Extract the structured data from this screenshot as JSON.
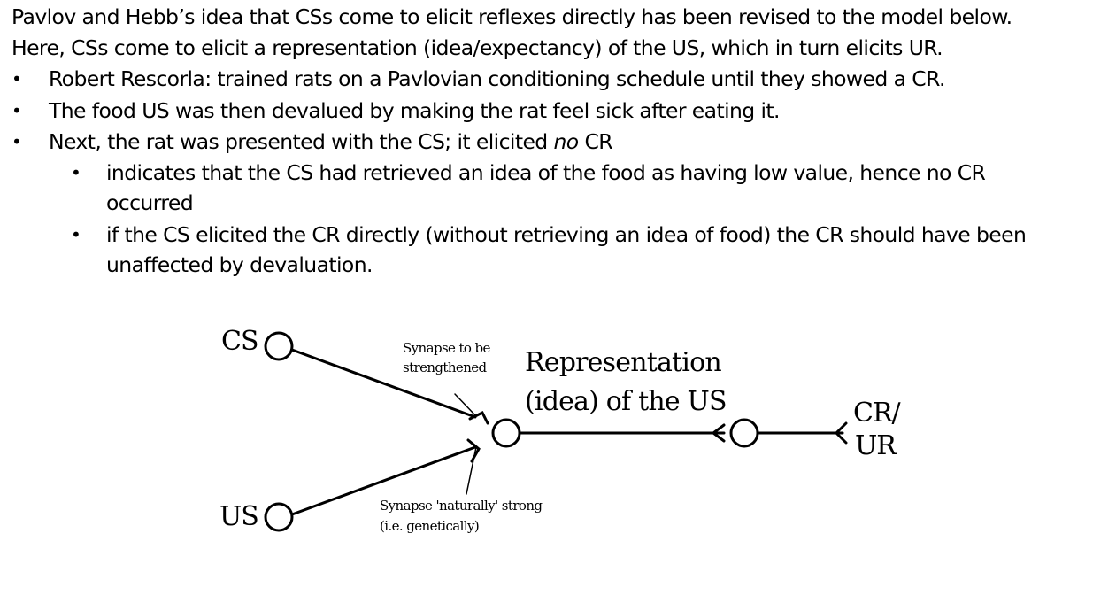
{
  "text": {
    "intro_line_1": "Pavlov and Hebb’s idea that CSs come to elicit reflexes directly has been revised to the model below.",
    "intro_line_2": "Here, CSs come to elicit a representation (idea/expectancy) of the US, which in turn elicits UR.",
    "bullets": [
      "Robert Rescorla: trained rats on a Pavlovian conditioning schedule until they showed a CR.",
      "The food US was then devalued by making the rat feel sick after eating it.",
      {
        "before": "Next, the rat was presented with the CS; it elicited ",
        "emphasis": "no",
        "after": " CR"
      }
    ],
    "sub_bullets": [
      {
        "line_1": "indicates that the CS had retrieved an idea of the food as having low value, hence no CR",
        "line_2": "occurred"
      },
      {
        "line_1": "if the CS elicited the CR directly (without retrieving an idea of food) the CR should have been",
        "line_2": "unaffected by devaluation."
      }
    ]
  },
  "diagram": {
    "nodes": {
      "cs": "CS",
      "us": "US",
      "cr_ur_line_1": "CR/",
      "cr_ur_line_2": "UR"
    },
    "representation": {
      "line_1": "Representation",
      "line_2": "(idea) of the US"
    },
    "annotations": {
      "learned_synapse_line_1": "Synapse to be",
      "learned_synapse_line_2": "strengthened",
      "innate_synapse_line_1": "Synapse 'naturally' strong",
      "innate_synapse_line_2": "(i.e. genetically)"
    }
  }
}
